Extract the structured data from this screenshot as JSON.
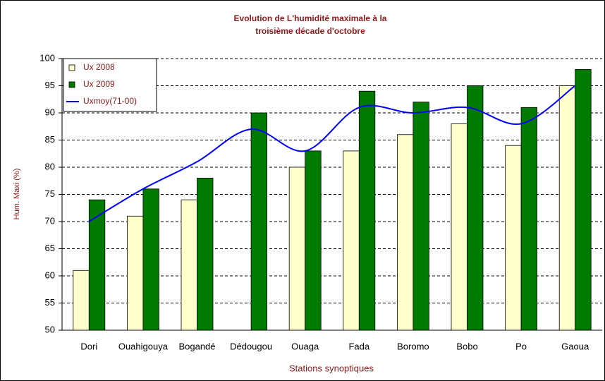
{
  "chart_data": {
    "type": "bar-line",
    "title": [
      "Evolution de L'humidité maximale  à la",
      "troisième décade d'octobre"
    ],
    "x_label": "Stations synoptiques",
    "y_label": "Hum. Maxi (%)",
    "categories": [
      "Dori",
      "Ouahigouya",
      "Bogandé",
      "Dédougou",
      "Ouaga",
      "Fada",
      "Boromo",
      "Bobo",
      "Po",
      "Gaoua"
    ],
    "series": [
      {
        "name": "Ux  2008",
        "type": "bar",
        "color": "#ffffcc",
        "values": [
          61,
          71,
          74,
          null,
          80,
          83,
          86,
          88,
          84,
          95
        ]
      },
      {
        "name": "Ux  2009",
        "type": "bar",
        "color": "#007a00",
        "values": [
          74,
          76,
          78,
          90,
          83,
          94,
          92,
          95,
          91,
          98
        ]
      },
      {
        "name": "Uxmoy(71-00)",
        "type": "line",
        "color": "#0000ff",
        "values": [
          70,
          76,
          81,
          87,
          83,
          91,
          90,
          91,
          88,
          95
        ]
      }
    ],
    "ylim": [
      50,
      100
    ],
    "yticks": [
      50,
      55,
      60,
      65,
      70,
      75,
      80,
      85,
      90,
      95,
      100
    ],
    "grid": true,
    "legend": "top-left"
  }
}
